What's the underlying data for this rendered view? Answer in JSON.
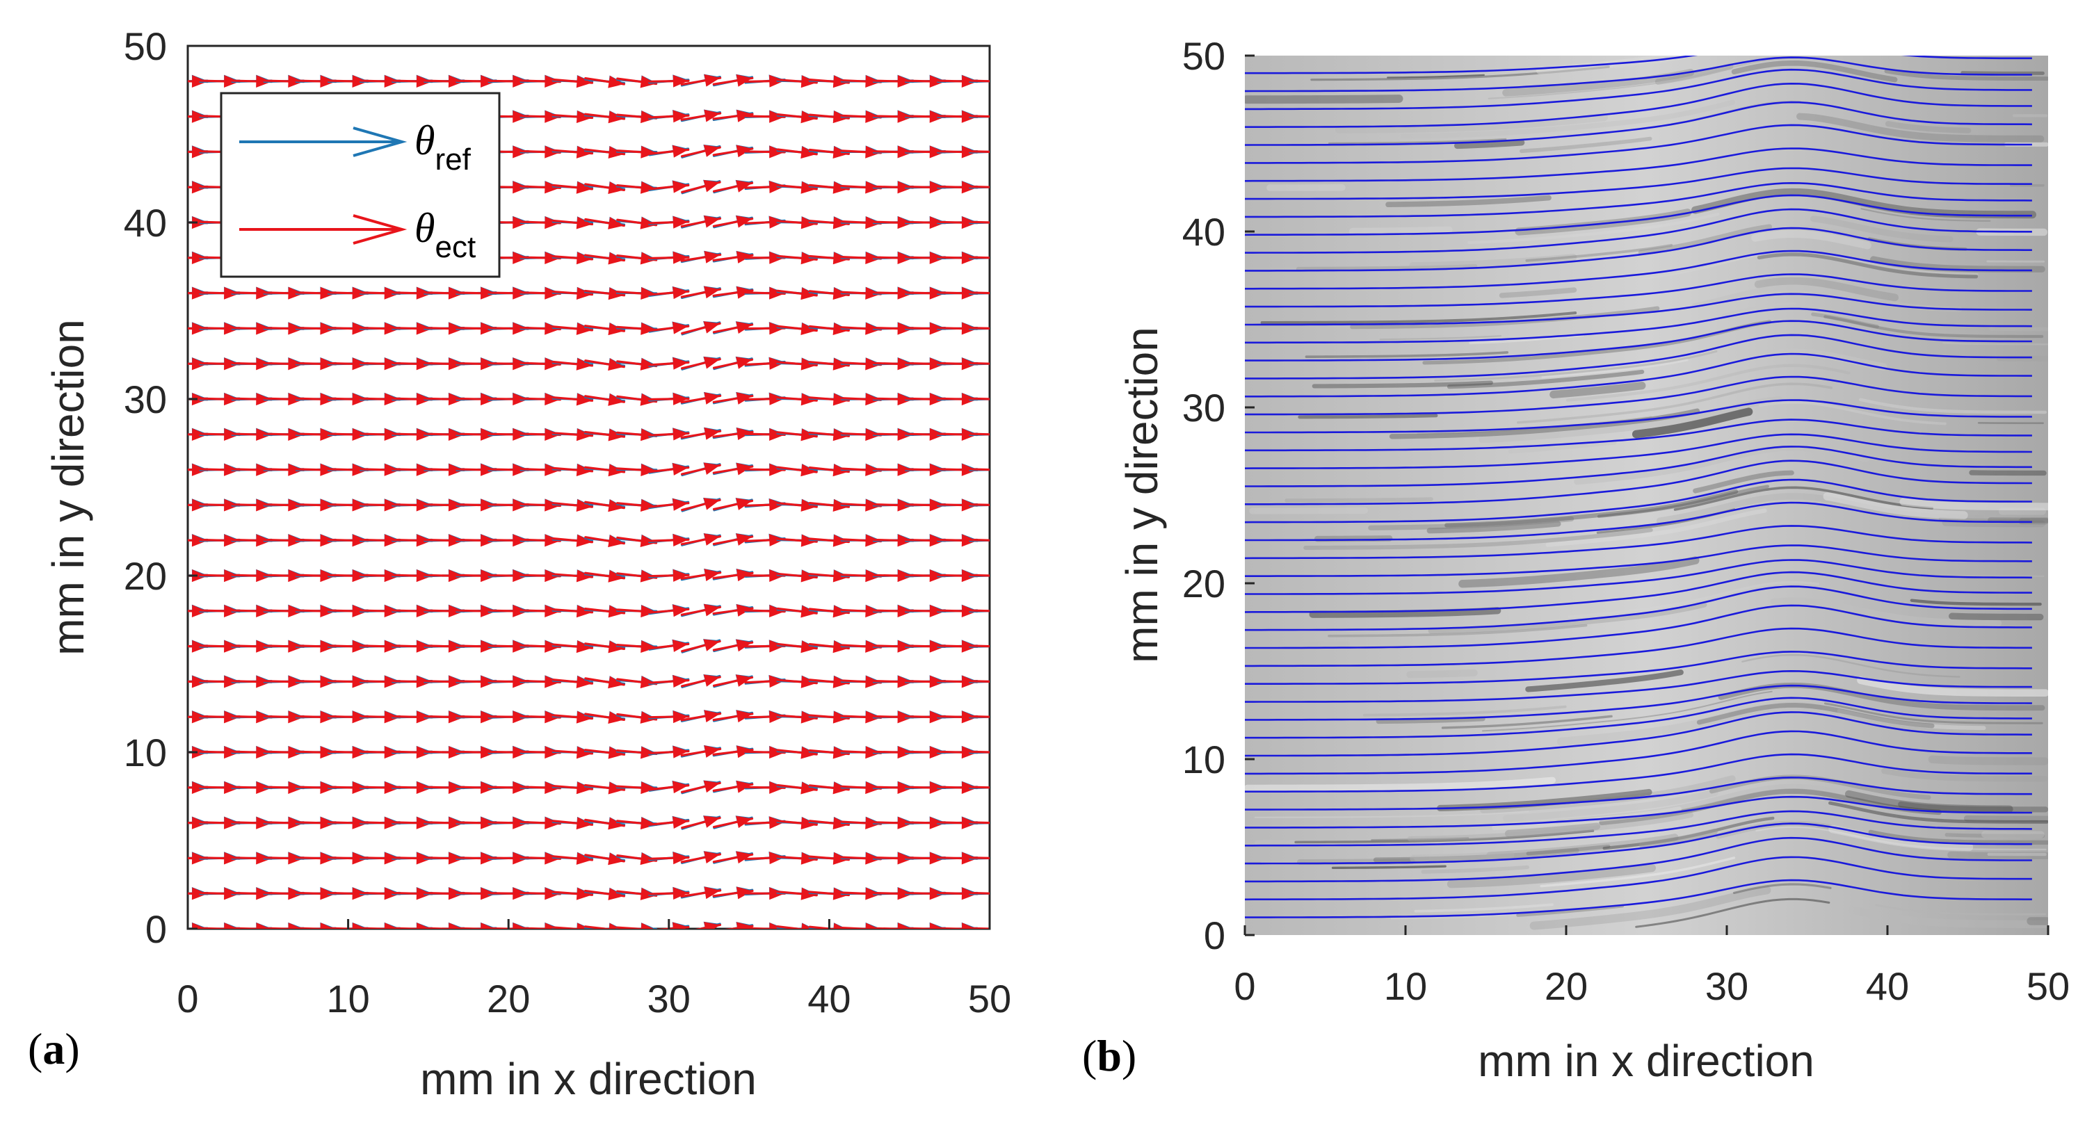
{
  "chart_data": [
    {
      "id": "a",
      "type": "quiver",
      "panel_label": "a",
      "xlabel": "mm in x direction",
      "ylabel": "mm in y direction",
      "xlim": [
        0,
        50
      ],
      "ylim": [
        0,
        50
      ],
      "xticks": [
        0,
        10,
        20,
        30,
        40,
        50
      ],
      "yticks": [
        0,
        10,
        20,
        30,
        40,
        50
      ],
      "legend": {
        "position": "top-left",
        "entries": [
          {
            "symbol": "θ",
            "subscript": "ref",
            "color": "#1f77b4"
          },
          {
            "symbol": "θ",
            "subscript": "ect",
            "color": "#e8151b"
          }
        ]
      },
      "grid_spacing_mm": 2,
      "wave": {
        "center_x": 32,
        "width": 7,
        "max_angle_deg": 14
      },
      "series": [
        {
          "name": "θref",
          "color": "#1f77b4"
        },
        {
          "name": "θect",
          "color": "#e8151b"
        }
      ]
    },
    {
      "id": "b",
      "type": "streamlines",
      "panel_label": "b",
      "xlabel": "mm in x direction",
      "ylabel": "mm in y direction",
      "xlim": [
        0,
        50
      ],
      "ylim": [
        0,
        50
      ],
      "xticks": [
        0,
        10,
        20,
        30,
        40,
        50
      ],
      "yticks": [
        0,
        10,
        20,
        30,
        40,
        50
      ],
      "line_color": "#1a1adb",
      "line_count": 48,
      "line_x_range": [
        0,
        49
      ],
      "wave": {
        "center_x": 34,
        "width": 8,
        "amplitude_mm": 2.2
      },
      "background": "grayscale fiber image"
    }
  ]
}
